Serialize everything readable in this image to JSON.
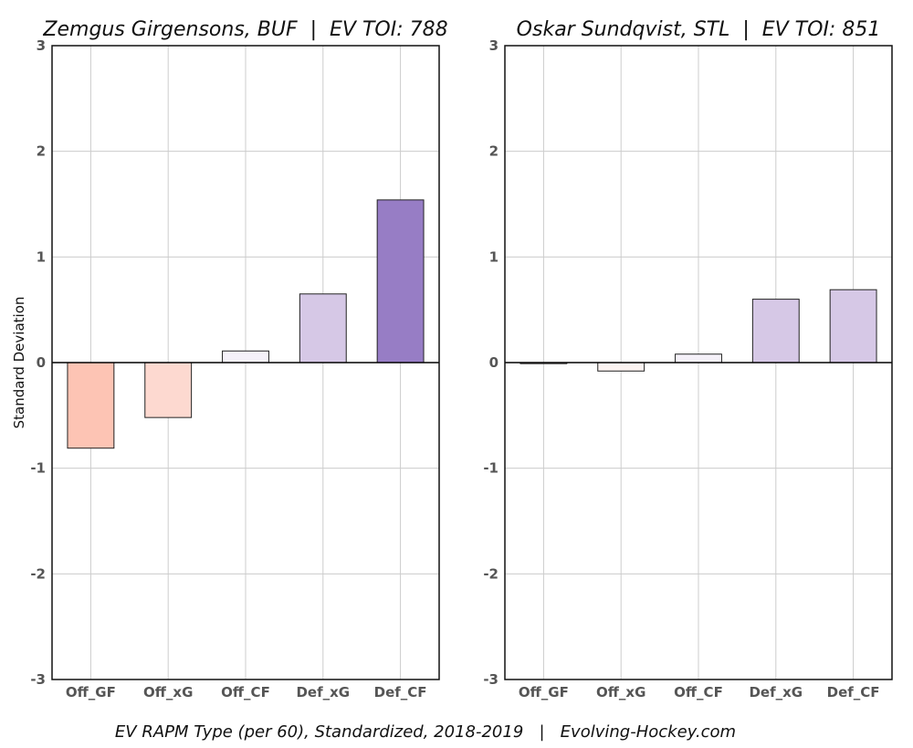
{
  "caption": "EV RAPM Type (per 60), Standardized, 2018-2019   |   Evolving-Hockey.com",
  "colors": {
    "positive_light": "#d6c8e6",
    "positive_dark": "#977dc5",
    "negative_light": "#fdd9d0",
    "negative_dark": "#fdc4b4",
    "near_zero_pos": "#f5f1f9",
    "near_zero_neg": "#fbf3f1",
    "grid": "#cccccc",
    "axis": "#111111"
  },
  "chart_data": [
    {
      "type": "bar",
      "title": "Zemgus Girgensons, BUF  |  EV TOI: 788",
      "ylabel": "Standard Deviation",
      "xlabel": "",
      "categories": [
        "Off_GF",
        "Off_xG",
        "Off_CF",
        "Def_xG",
        "Def_CF"
      ],
      "values": [
        -0.81,
        -0.52,
        0.11,
        0.65,
        1.54
      ],
      "ylim": [
        -3,
        3
      ],
      "yticks": [
        "-3",
        "-2",
        "-1",
        "0",
        "1",
        "2",
        "3"
      ],
      "grid": true,
      "legend": "none"
    },
    {
      "type": "bar",
      "title": "Oskar Sundqvist, STL  |  EV TOI: 851",
      "ylabel": "",
      "xlabel": "",
      "categories": [
        "Off_GF",
        "Off_xG",
        "Off_CF",
        "Def_xG",
        "Def_CF"
      ],
      "values": [
        -0.01,
        -0.08,
        0.08,
        0.6,
        0.69
      ],
      "ylim": [
        -3,
        3
      ],
      "yticks": [
        "-3",
        "-2",
        "-1",
        "0",
        "1",
        "2",
        "3"
      ],
      "grid": true,
      "legend": "none"
    }
  ]
}
